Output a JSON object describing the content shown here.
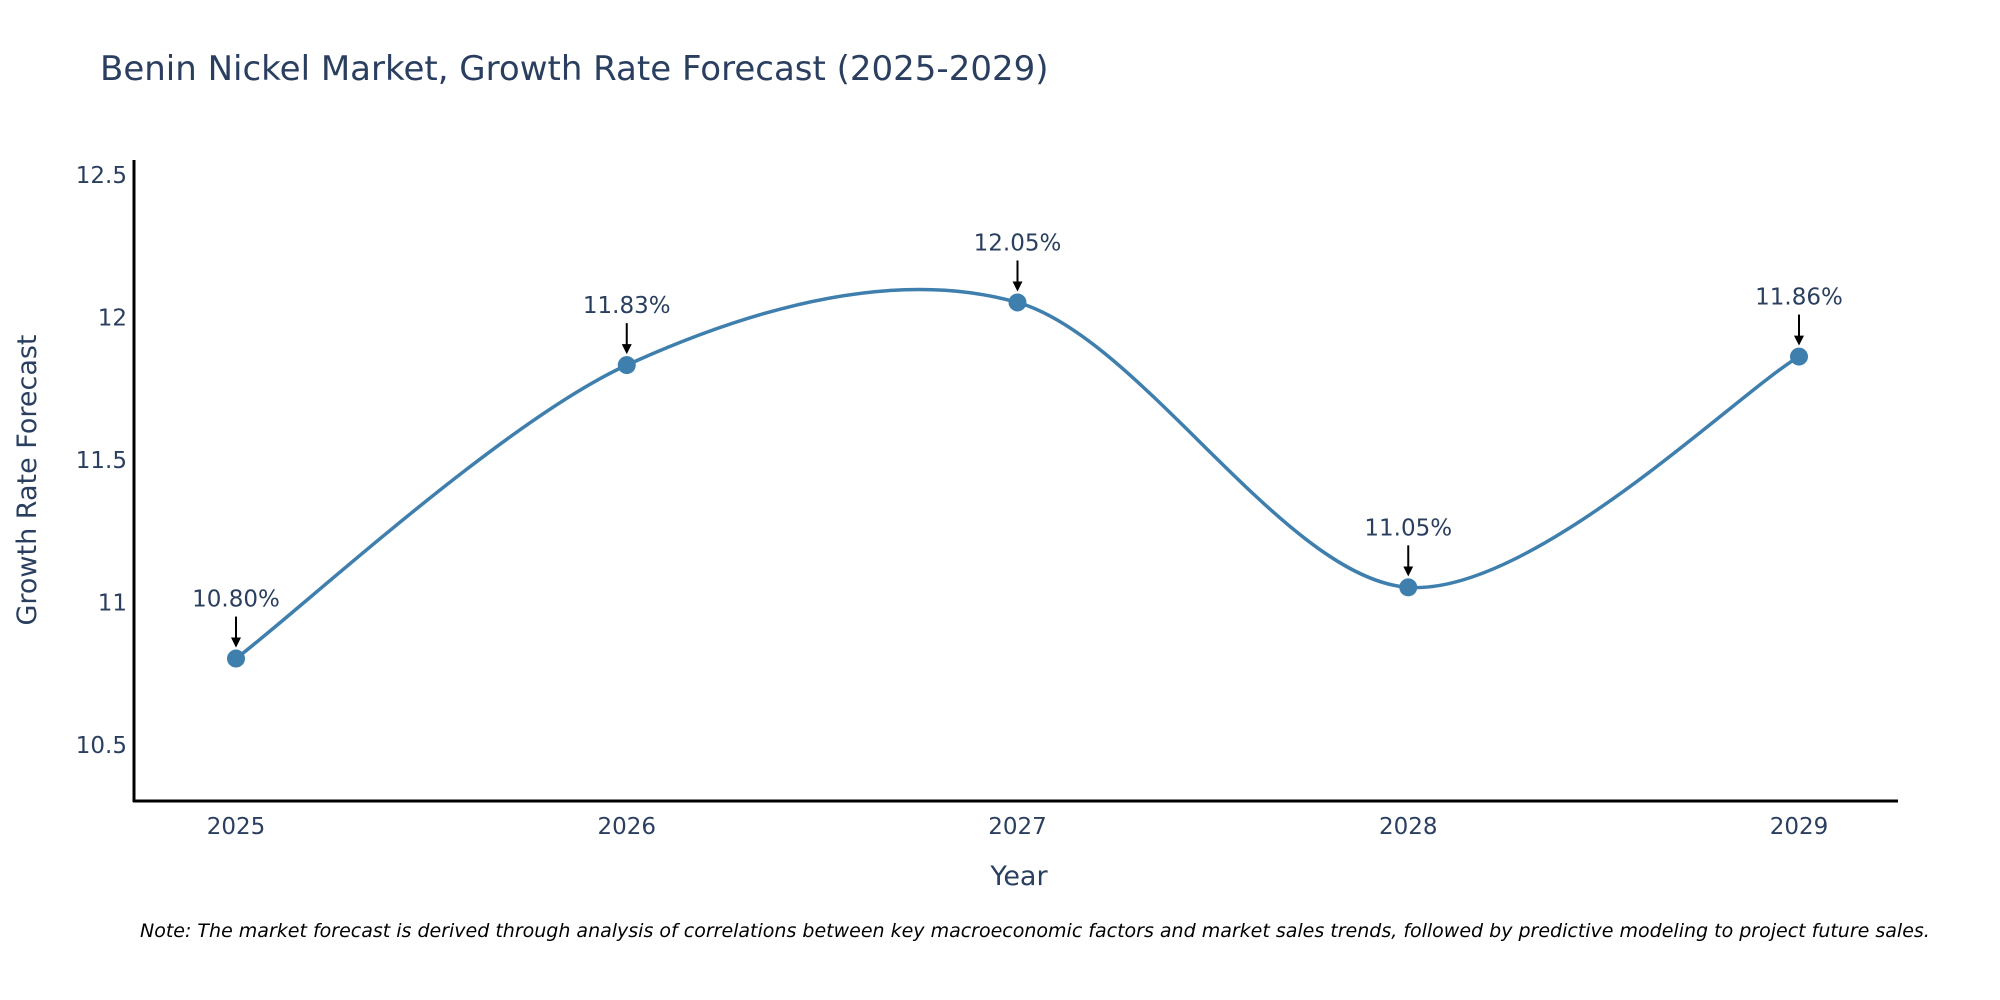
{
  "chart_data": {
    "type": "line",
    "title": "Benin Nickel Market, Growth Rate Forecast (2025-2029)",
    "xlabel": "Year",
    "ylabel": "Growth Rate Forecast",
    "categories": [
      "2025",
      "2026",
      "2027",
      "2028",
      "2029"
    ],
    "values": [
      10.8,
      11.83,
      12.05,
      11.05,
      11.86
    ],
    "point_labels": [
      "10.80%",
      "11.83%",
      "12.05%",
      "11.05%",
      "11.86%"
    ],
    "ylim": [
      10.3,
      12.55
    ],
    "yticks": [
      10.5,
      11,
      11.5,
      12,
      12.5
    ],
    "ytick_labels": [
      "10.5",
      "11",
      "11.5",
      "12",
      "12.5"
    ],
    "grid": false,
    "line_shape": "spline",
    "colors": {
      "line": "#3f7fae",
      "marker": "#3f7fae",
      "text": "#2a3f5f",
      "axis": "#000000",
      "arrow": "#000000"
    }
  },
  "footer": {
    "note": "Note: The market forecast is derived through analysis of correlations between key macroeconomic factors and market sales trends, followed by predictive modeling to project future sales."
  }
}
